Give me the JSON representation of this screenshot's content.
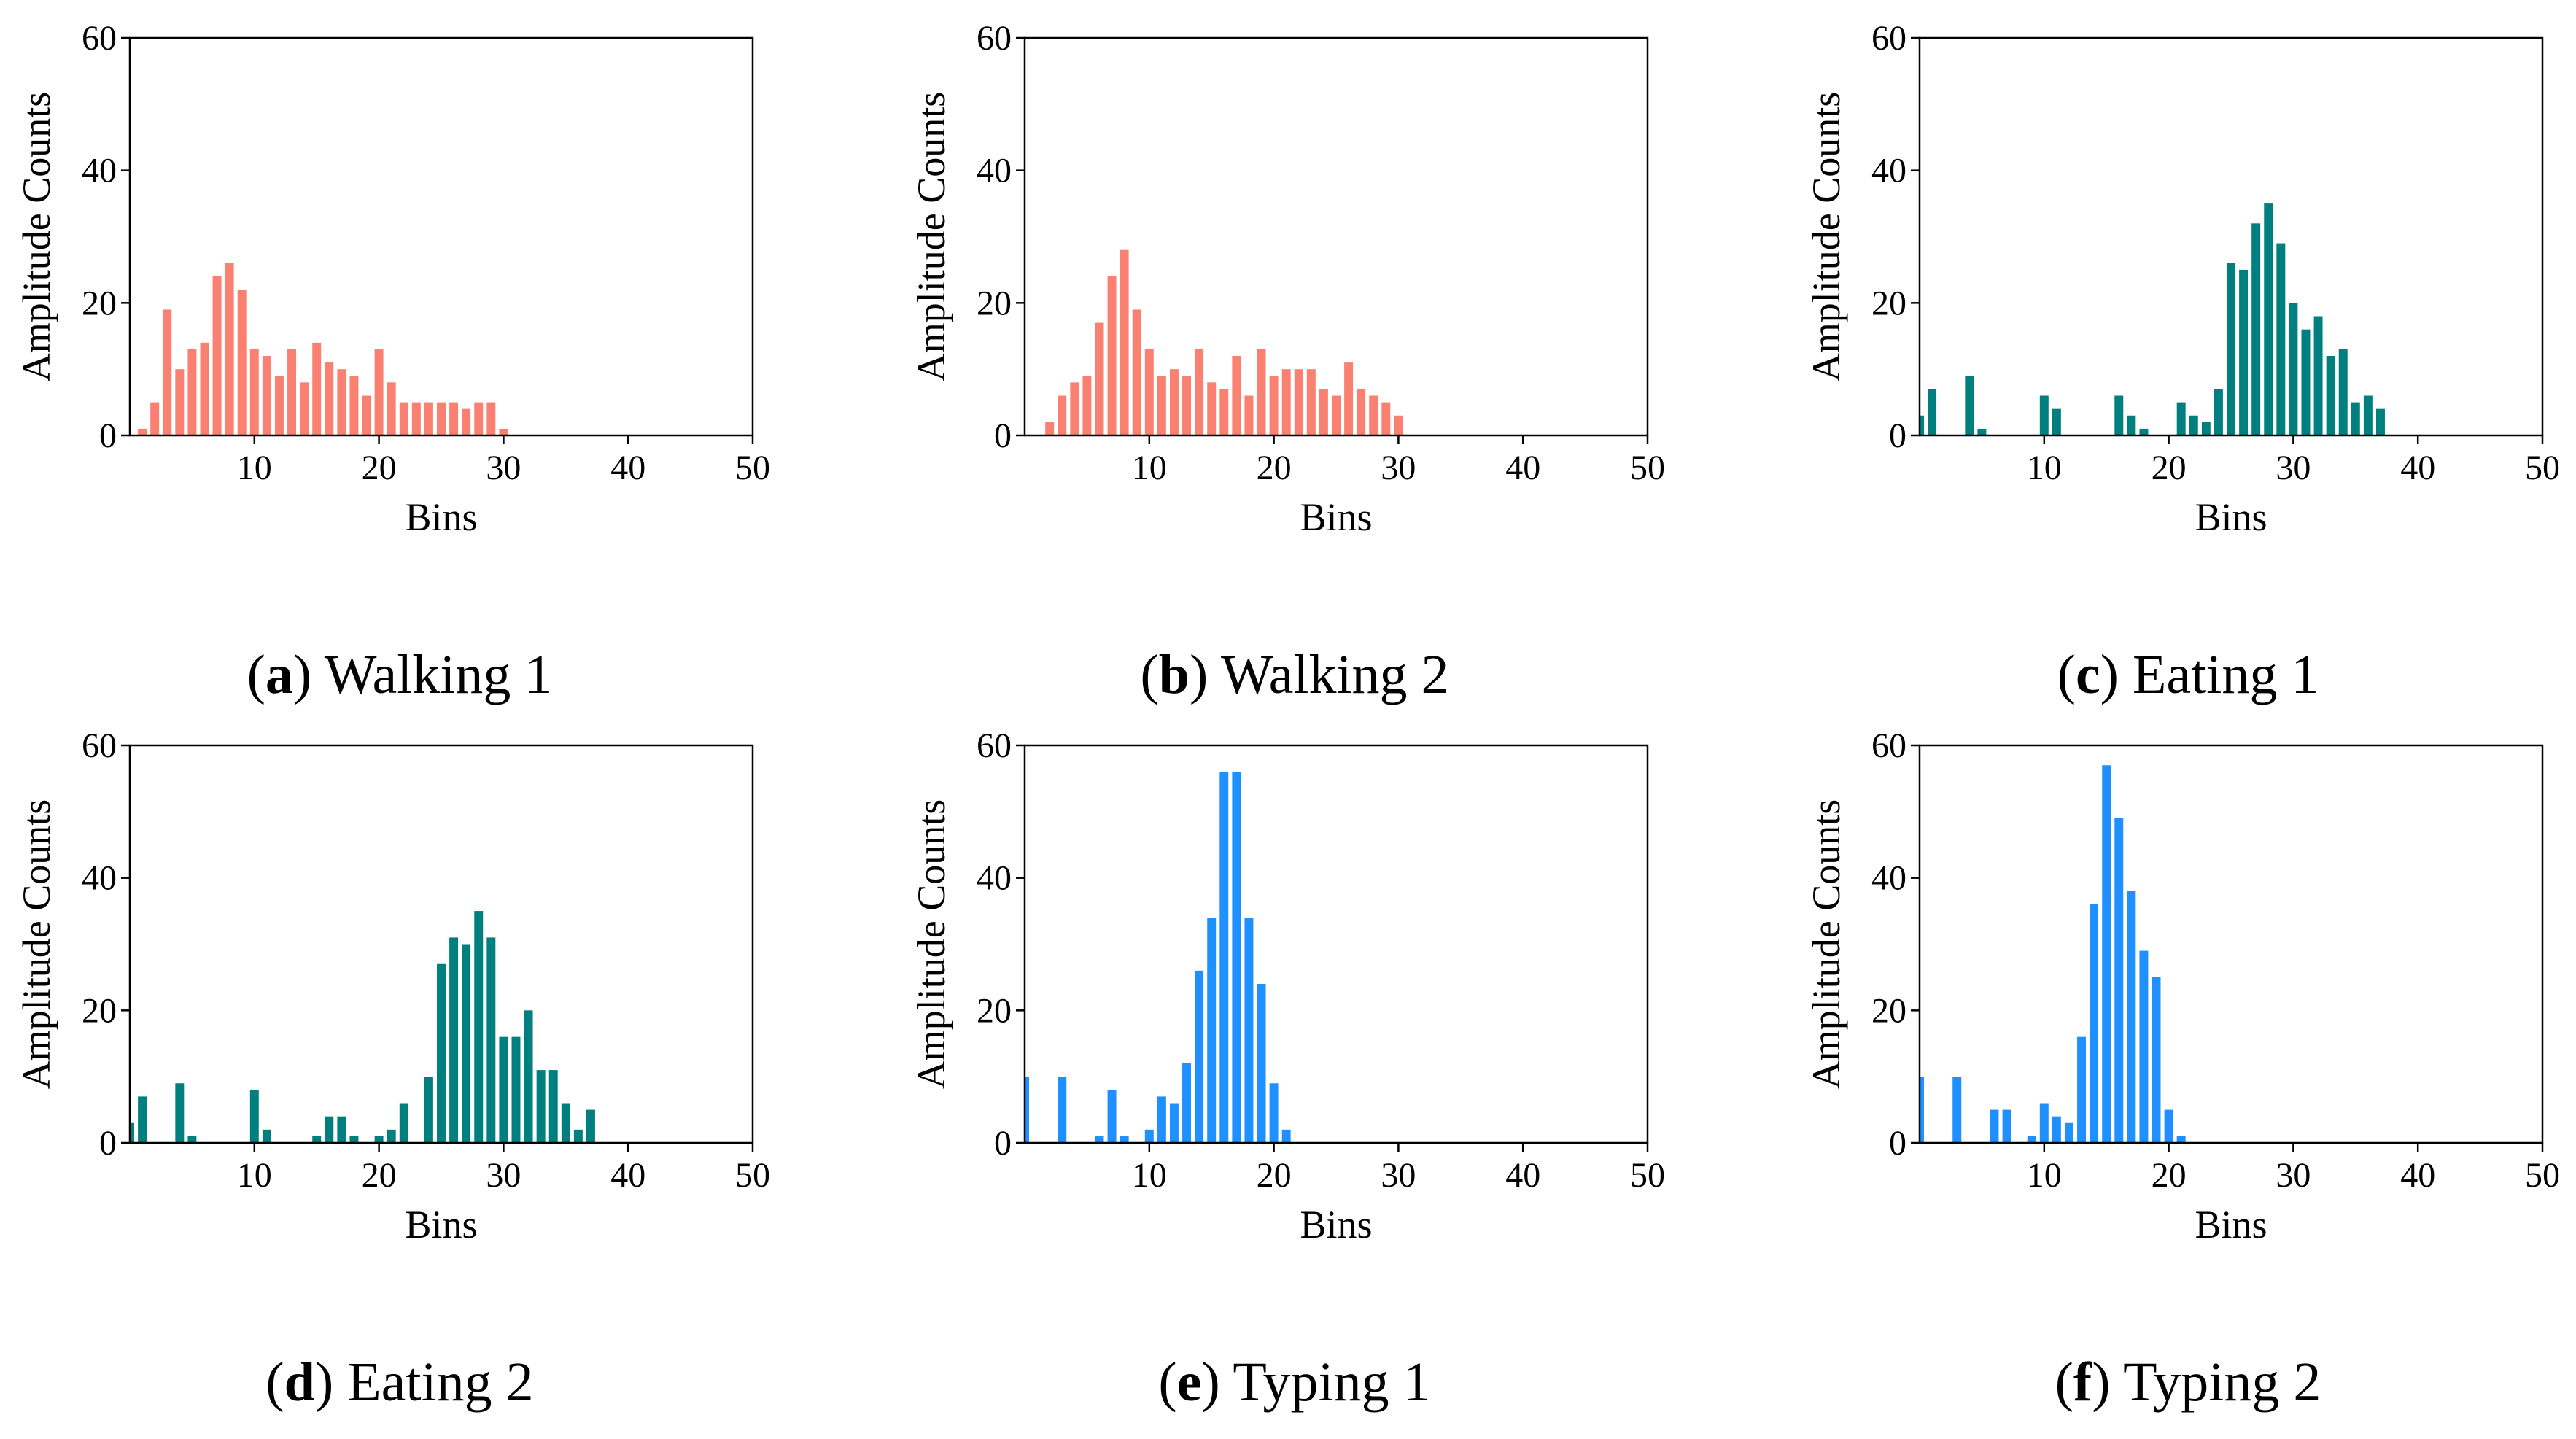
{
  "chart_data": [
    {
      "type": "bar",
      "panel_letter": "a",
      "title": "Walking 1",
      "xlabel": "Bins",
      "ylabel": "Amplitude Counts",
      "xlim": [
        0,
        50
      ],
      "ylim": [
        0,
        60
      ],
      "xticks": [
        10,
        20,
        30,
        40,
        50
      ],
      "yticks": [
        0,
        20,
        40,
        60
      ],
      "color": "#FA8072",
      "x": [
        1,
        2,
        3,
        4,
        5,
        6,
        7,
        8,
        9,
        10,
        11,
        12,
        13,
        14,
        15,
        16,
        17,
        18,
        19,
        20,
        21,
        22,
        23,
        24,
        25,
        26,
        27,
        28,
        29,
        30
      ],
      "values": [
        1,
        5,
        19,
        10,
        13,
        14,
        24,
        26,
        22,
        13,
        12,
        9,
        13,
        8,
        14,
        11,
        10,
        9,
        6,
        13,
        8,
        5,
        5,
        5,
        5,
        5,
        4,
        5,
        5,
        1
      ]
    },
    {
      "type": "bar",
      "panel_letter": "b",
      "title": "Walking 2",
      "xlabel": "Bins",
      "ylabel": "Amplitude Counts",
      "xlim": [
        0,
        50
      ],
      "ylim": [
        0,
        60
      ],
      "xticks": [
        10,
        20,
        30,
        40,
        50
      ],
      "yticks": [
        0,
        20,
        40,
        60
      ],
      "color": "#FA8072",
      "x": [
        2,
        3,
        4,
        5,
        6,
        7,
        8,
        9,
        10,
        11,
        12,
        13,
        14,
        15,
        16,
        17,
        18,
        19,
        20,
        21,
        22,
        23,
        24,
        25,
        26,
        27,
        28,
        29,
        30
      ],
      "values": [
        2,
        6,
        8,
        9,
        17,
        24,
        28,
        19,
        13,
        9,
        10,
        9,
        13,
        8,
        7,
        12,
        6,
        13,
        9,
        10,
        10,
        10,
        7,
        6,
        11,
        7,
        6,
        5,
        3
      ]
    },
    {
      "type": "bar",
      "panel_letter": "c",
      "title": "Eating 1",
      "xlabel": "Bins",
      "ylabel": "Amplitude Counts",
      "xlim": [
        0,
        50
      ],
      "ylim": [
        0,
        60
      ],
      "xticks": [
        10,
        20,
        30,
        40,
        50
      ],
      "yticks": [
        0,
        20,
        40,
        60
      ],
      "color": "#007F7F",
      "x": [
        0,
        1,
        4,
        5,
        10,
        11,
        16,
        17,
        18,
        21,
        22,
        23,
        24,
        25,
        26,
        27,
        28,
        29,
        30,
        31,
        32,
        33,
        34,
        35,
        36,
        37
      ],
      "values": [
        3,
        7,
        9,
        1,
        6,
        4,
        6,
        3,
        1,
        5,
        3,
        2,
        7,
        26,
        25,
        32,
        35,
        29,
        20,
        16,
        18,
        12,
        13,
        5,
        6,
        4
      ]
    },
    {
      "type": "bar",
      "panel_letter": "d",
      "title": "Eating 2",
      "xlabel": "Bins",
      "ylabel": "Amplitude Counts",
      "xlim": [
        0,
        50
      ],
      "ylim": [
        0,
        60
      ],
      "xticks": [
        10,
        20,
        30,
        40,
        50
      ],
      "yticks": [
        0,
        20,
        40,
        60
      ],
      "color": "#007F7F",
      "x": [
        0,
        1,
        4,
        5,
        10,
        11,
        15,
        16,
        17,
        18,
        20,
        21,
        22,
        24,
        25,
        26,
        27,
        28,
        29,
        30,
        31,
        32,
        33,
        34,
        35,
        36,
        37
      ],
      "values": [
        3,
        7,
        9,
        1,
        8,
        2,
        1,
        4,
        4,
        1,
        1,
        2,
        6,
        10,
        27,
        31,
        30,
        35,
        31,
        16,
        16,
        20,
        11,
        11,
        6,
        2,
        5
      ]
    },
    {
      "type": "bar",
      "panel_letter": "e",
      "title": "Typing 1",
      "xlabel": "Bins",
      "ylabel": "Amplitude Counts",
      "xlim": [
        0,
        50
      ],
      "ylim": [
        0,
        60
      ],
      "xticks": [
        10,
        20,
        30,
        40,
        50
      ],
      "yticks": [
        0,
        20,
        40,
        60
      ],
      "color": "#1E90FF",
      "x": [
        0,
        3,
        6,
        7,
        8,
        10,
        11,
        12,
        13,
        14,
        15,
        16,
        17,
        18,
        19,
        20,
        21
      ],
      "values": [
        10,
        10,
        1,
        8,
        1,
        2,
        7,
        6,
        12,
        26,
        34,
        56,
        56,
        34,
        24,
        9,
        2
      ]
    },
    {
      "type": "bar",
      "panel_letter": "f",
      "title": "Typing 2",
      "xlabel": "Bins",
      "ylabel": "Amplitude Counts",
      "xlim": [
        0,
        50
      ],
      "ylim": [
        0,
        60
      ],
      "xticks": [
        10,
        20,
        30,
        40,
        50
      ],
      "yticks": [
        0,
        20,
        40,
        60
      ],
      "color": "#1E90FF",
      "x": [
        0,
        3,
        6,
        7,
        9,
        10,
        11,
        12,
        13,
        14,
        15,
        16,
        17,
        18,
        19,
        20,
        21
      ],
      "values": [
        10,
        10,
        5,
        5,
        1,
        6,
        4,
        3,
        16,
        36,
        57,
        49,
        38,
        29,
        25,
        5,
        1
      ]
    }
  ]
}
